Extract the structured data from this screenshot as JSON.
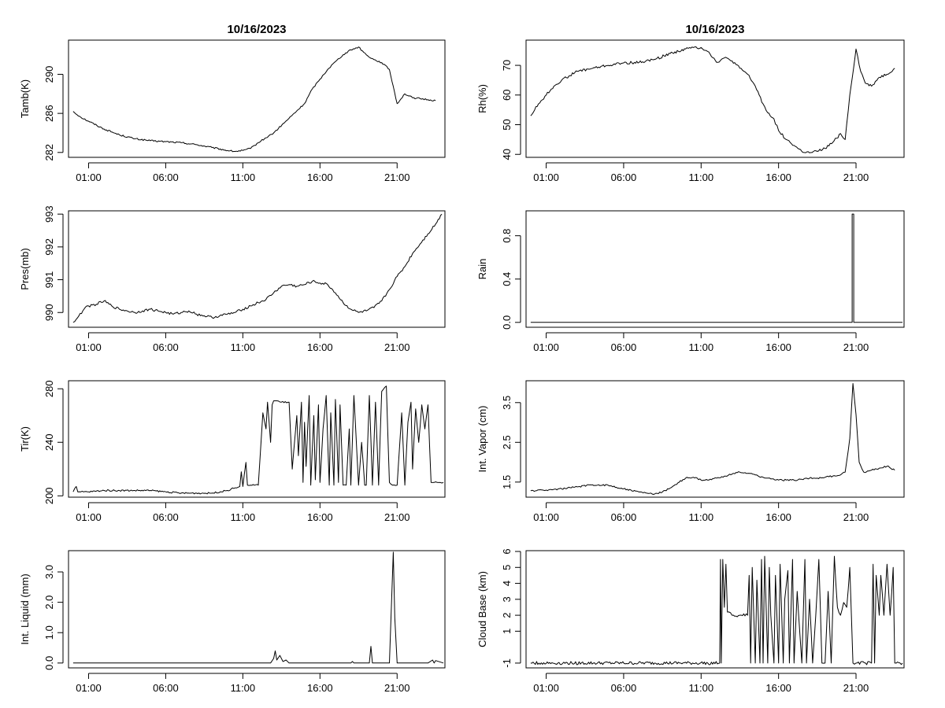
{
  "chart_data": [
    {
      "type": "line",
      "title": "10/16/2023",
      "ylabel": "Tamb(K)",
      "xlabel": "",
      "x_ticks": [
        "01:00",
        "06:00",
        "11:00",
        "16:00",
        "21:00"
      ],
      "x_tick_hours": [
        1,
        6,
        11,
        16,
        21
      ],
      "xlim": [
        -0.3,
        24.1
      ],
      "ylim": [
        281.5,
        293.5
      ],
      "y_ticks": [
        282,
        286,
        290
      ],
      "y_tick_labels": [
        "282",
        "286",
        "290"
      ],
      "noise": 0.08,
      "series": [
        {
          "name": "Tamb",
          "x": [
            0.0,
            0.5,
            1.0,
            2.0,
            3.0,
            4.0,
            5.0,
            6.0,
            7.0,
            8.0,
            9.0,
            10.0,
            10.5,
            11.0,
            11.5,
            12.0,
            12.5,
            13.0,
            14.0,
            15.0,
            15.5,
            16.0,
            16.5,
            17.0,
            17.5,
            18.0,
            18.5,
            19.0,
            19.5,
            20.0,
            20.5,
            21.0,
            21.5,
            22.0,
            22.5,
            23.0,
            23.5
          ],
          "values": [
            286.2,
            285.6,
            285.2,
            284.4,
            283.8,
            283.4,
            283.2,
            283.1,
            283.0,
            282.8,
            282.5,
            282.2,
            282.1,
            282.2,
            282.4,
            283.0,
            283.5,
            284.0,
            285.5,
            287.0,
            288.5,
            289.5,
            290.5,
            291.3,
            292.0,
            292.5,
            292.8,
            292.0,
            291.5,
            291.2,
            290.5,
            287.0,
            288.0,
            287.6,
            287.5,
            287.4,
            287.3
          ]
        }
      ]
    },
    {
      "type": "line",
      "title": "10/16/2023",
      "ylabel": "Rh(%)",
      "xlabel": "",
      "x_ticks": [
        "01:00",
        "06:00",
        "11:00",
        "16:00",
        "21:00"
      ],
      "x_tick_hours": [
        1,
        6,
        11,
        16,
        21
      ],
      "xlim": [
        -0.3,
        24.1
      ],
      "ylim": [
        39,
        78.5
      ],
      "y_ticks": [
        40,
        50,
        60,
        70
      ],
      "y_tick_labels": [
        "40",
        "50",
        "60",
        "70"
      ],
      "noise": 0.45,
      "series": [
        {
          "name": "Rh",
          "x": [
            0.0,
            0.5,
            1.0,
            1.5,
            2.0,
            3.0,
            4.0,
            5.0,
            6.0,
            7.0,
            8.0,
            9.0,
            10.0,
            10.5,
            11.0,
            11.5,
            12.0,
            12.5,
            13.0,
            13.5,
            14.0,
            14.5,
            15.0,
            15.3,
            15.7,
            16.0,
            16.5,
            17.0,
            17.5,
            18.0,
            18.5,
            19.0,
            19.5,
            20.0,
            20.3,
            20.6,
            21.0,
            21.3,
            21.6,
            22.0,
            22.5,
            23.0,
            23.5
          ],
          "values": [
            53.0,
            57.0,
            60.0,
            63.0,
            65.0,
            68.0,
            69.0,
            70.0,
            70.8,
            71.0,
            72.0,
            74.0,
            75.5,
            76.0,
            76.0,
            74.5,
            71.0,
            72.5,
            71.5,
            69.0,
            67.0,
            63.0,
            57.0,
            54.0,
            52.0,
            48.0,
            45.0,
            43.0,
            41.0,
            40.5,
            41.0,
            42.0,
            44.0,
            47.0,
            45.0,
            60.0,
            75.5,
            68.0,
            64.0,
            63.0,
            66.0,
            67.0,
            69.0
          ]
        }
      ]
    },
    {
      "type": "line",
      "title": "",
      "ylabel": "Pres(mb)",
      "xlabel": "",
      "x_ticks": [
        "01:00",
        "06:00",
        "11:00",
        "16:00",
        "21:00"
      ],
      "x_tick_hours": [
        1,
        6,
        11,
        16,
        21
      ],
      "xlim": [
        -0.3,
        24.1
      ],
      "ylim": [
        989.55,
        993.1
      ],
      "y_ticks": [
        990,
        991,
        992,
        993
      ],
      "y_tick_labels": [
        "990",
        "991",
        "992",
        "993"
      ],
      "noise": 0.04,
      "series": [
        {
          "name": "Pres",
          "x": [
            0.0,
            0.3,
            0.7,
            1.0,
            1.5,
            2.0,
            2.5,
            3.0,
            3.5,
            4.0,
            4.5,
            5.0,
            5.5,
            6.0,
            6.5,
            7.0,
            7.5,
            8.0,
            8.5,
            9.0,
            9.5,
            10.0,
            10.5,
            11.0,
            11.5,
            12.0,
            12.5,
            13.0,
            13.5,
            14.0,
            14.5,
            15.0,
            15.5,
            16.0,
            16.5,
            17.0,
            17.5,
            18.0,
            18.5,
            19.0,
            19.5,
            20.0,
            20.5,
            21.0,
            21.5,
            22.0,
            22.5,
            23.0,
            23.5,
            23.9
          ],
          "values": [
            989.7,
            989.85,
            990.1,
            990.2,
            990.25,
            990.35,
            990.2,
            990.1,
            990.05,
            990.0,
            990.05,
            990.1,
            990.05,
            990.0,
            989.95,
            990.0,
            990.05,
            989.95,
            989.9,
            989.85,
            989.9,
            989.95,
            990.0,
            990.1,
            990.2,
            990.3,
            990.4,
            990.6,
            990.8,
            990.85,
            990.8,
            990.85,
            990.95,
            990.9,
            990.85,
            990.6,
            990.3,
            990.1,
            990.0,
            990.05,
            990.15,
            990.35,
            990.7,
            991.1,
            991.4,
            991.8,
            992.1,
            992.4,
            992.7,
            993.0
          ]
        }
      ]
    },
    {
      "type": "line",
      "title": "",
      "ylabel": "Rain",
      "xlabel": "",
      "x_ticks": [
        "01:00",
        "06:00",
        "11:00",
        "16:00",
        "21:00"
      ],
      "x_tick_hours": [
        1,
        6,
        11,
        16,
        21
      ],
      "xlim": [
        -0.3,
        24.1
      ],
      "ylim": [
        -0.045,
        1.03
      ],
      "y_ticks": [
        0.0,
        0.4,
        0.8
      ],
      "y_tick_labels": [
        "0.0",
        "0.4",
        "0.8"
      ],
      "noise": 0,
      "series": [
        {
          "name": "Rain",
          "x": [
            0.0,
            20.75,
            20.75,
            20.85,
            20.85,
            24.0
          ],
          "values": [
            0.0,
            0.0,
            1.0,
            1.0,
            0.0,
            0.0
          ]
        }
      ]
    },
    {
      "type": "line",
      "title": "",
      "ylabel": "Tir(K)",
      "xlabel": "",
      "x_ticks": [
        "01:00",
        "06:00",
        "11:00",
        "16:00",
        "21:00"
      ],
      "x_tick_hours": [
        1,
        6,
        11,
        16,
        21
      ],
      "xlim": [
        -0.3,
        24.1
      ],
      "ylim": [
        199,
        286
      ],
      "y_ticks": [
        200,
        240,
        280
      ],
      "y_tick_labels": [
        "200",
        "240",
        "280"
      ],
      "noise": 0.6,
      "series": [
        {
          "name": "Tir",
          "x": [
            0.0,
            0.2,
            0.3,
            0.5,
            1.0,
            2.0,
            3.0,
            4.0,
            5.0,
            6.0,
            7.0,
            8.0,
            9.0,
            10.0,
            10.5,
            10.8,
            10.9,
            11.0,
            11.2,
            11.3,
            11.5,
            12.0,
            12.3,
            12.5,
            12.6,
            12.8,
            12.9,
            13.0,
            13.2,
            13.5,
            14.0,
            14.2,
            14.5,
            14.6,
            14.8,
            14.9,
            15.0,
            15.1,
            15.3,
            15.4,
            15.6,
            15.7,
            15.9,
            16.0,
            16.2,
            16.4,
            16.6,
            16.7,
            16.9,
            17.0,
            17.2,
            17.3,
            17.5,
            17.7,
            17.9,
            18.0,
            18.2,
            18.5,
            18.7,
            18.9,
            19.0,
            19.2,
            19.4,
            19.6,
            19.8,
            20.0,
            20.3,
            20.5,
            20.7,
            21.0,
            21.3,
            21.5,
            21.7,
            21.9,
            22.0,
            22.2,
            22.4,
            22.6,
            22.8,
            23.0,
            23.2,
            23.4,
            23.6,
            23.8,
            24.0
          ],
          "values": [
            203,
            207,
            203,
            203,
            203,
            204,
            204,
            204,
            204,
            203,
            202,
            202,
            202,
            204,
            206,
            207,
            218,
            207,
            225,
            208,
            208,
            208,
            262,
            250,
            270,
            240,
            268,
            271,
            271,
            270,
            270,
            220,
            260,
            230,
            270,
            210,
            255,
            222,
            275,
            208,
            260,
            212,
            268,
            210,
            250,
            275,
            208,
            262,
            208,
            272,
            210,
            268,
            208,
            208,
            250,
            208,
            275,
            208,
            240,
            208,
            208,
            275,
            208,
            270,
            208,
            278,
            282,
            210,
            208,
            208,
            262,
            208,
            255,
            270,
            220,
            265,
            240,
            268,
            250,
            268,
            210,
            210,
            210,
            210,
            210
          ]
        }
      ]
    },
    {
      "type": "line",
      "title": "",
      "ylabel": "Int. Vapor (cm)",
      "xlabel": "",
      "x_ticks": [
        "01:00",
        "06:00",
        "11:00",
        "16:00",
        "21:00"
      ],
      "x_tick_hours": [
        1,
        6,
        11,
        16,
        21
      ],
      "xlim": [
        -0.3,
        24.1
      ],
      "ylim": [
        1.12,
        4.05
      ],
      "y_ticks": [
        1.5,
        2.5,
        3.5
      ],
      "y_tick_labels": [
        "1.5",
        "2.5",
        "3.5"
      ],
      "noise": 0.02,
      "series": [
        {
          "name": "Int. Vapor",
          "x": [
            0.0,
            1.0,
            2.0,
            3.0,
            4.0,
            5.0,
            6.0,
            7.0,
            7.5,
            8.0,
            8.5,
            9.0,
            9.5,
            10.0,
            10.5,
            11.0,
            11.5,
            12.0,
            12.5,
            13.0,
            13.5,
            14.0,
            14.5,
            15.0,
            15.5,
            16.0,
            16.5,
            17.0,
            17.5,
            18.0,
            18.5,
            19.0,
            19.5,
            20.0,
            20.3,
            20.6,
            20.8,
            21.0,
            21.2,
            21.5,
            22.0,
            22.5,
            23.0,
            23.5
          ],
          "values": [
            1.28,
            1.3,
            1.33,
            1.38,
            1.43,
            1.42,
            1.33,
            1.25,
            1.22,
            1.2,
            1.25,
            1.35,
            1.48,
            1.6,
            1.62,
            1.55,
            1.55,
            1.6,
            1.65,
            1.7,
            1.75,
            1.72,
            1.68,
            1.62,
            1.58,
            1.55,
            1.55,
            1.55,
            1.57,
            1.6,
            1.6,
            1.62,
            1.65,
            1.68,
            1.75,
            2.6,
            3.98,
            3.2,
            2.0,
            1.75,
            1.8,
            1.85,
            1.9,
            1.8
          ]
        }
      ]
    },
    {
      "type": "line",
      "title": "",
      "ylabel": "Int. Liquid (mm)",
      "xlabel": "",
      "x_ticks": [
        "01:00",
        "06:00",
        "11:00",
        "16:00",
        "21:00"
      ],
      "x_tick_hours": [
        1,
        6,
        11,
        16,
        21
      ],
      "xlim": [
        -0.3,
        24.1
      ],
      "ylim": [
        -0.16,
        3.7
      ],
      "y_ticks": [
        0.0,
        1.0,
        2.0,
        3.0
      ],
      "y_tick_labels": [
        "0.0",
        "1.0",
        "2.0",
        "3.0"
      ],
      "noise": 0,
      "series": [
        {
          "name": "Int. Liquid",
          "x": [
            0.0,
            12.8,
            13.0,
            13.1,
            13.2,
            13.4,
            13.6,
            13.8,
            14.0,
            18.0,
            18.1,
            18.2,
            19.2,
            19.3,
            19.4,
            20.5,
            20.75,
            20.85,
            21.0,
            23.0,
            23.3,
            23.4,
            23.5,
            24.0
          ],
          "values": [
            0.0,
            0.0,
            0.15,
            0.4,
            0.1,
            0.25,
            0.05,
            0.1,
            0.0,
            0.0,
            0.05,
            0.0,
            0.0,
            0.55,
            0.0,
            0.0,
            3.65,
            1.5,
            0.0,
            0.0,
            0.1,
            0.0,
            0.08,
            0.0
          ]
        }
      ]
    },
    {
      "type": "line",
      "title": "",
      "ylabel": "Cloud Base (km)",
      "xlabel": "",
      "x_ticks": [
        "01:00",
        "06:00",
        "11:00",
        "16:00",
        "21:00"
      ],
      "x_tick_hours": [
        1,
        6,
        11,
        16,
        21
      ],
      "xlim": [
        -0.3,
        24.1
      ],
      "ylim": [
        -1.3,
        6.05
      ],
      "y_ticks": [
        -1,
        1,
        2,
        3,
        4,
        5,
        6
      ],
      "y_tick_labels": [
        "-1",
        "1",
        "2",
        "3",
        "4",
        "5",
        "6"
      ],
      "noise": 0.1,
      "series": [
        {
          "name": "Cloud Base",
          "x": [
            0.0,
            12.2,
            12.25,
            12.3,
            12.4,
            12.5,
            12.6,
            12.7,
            13.0,
            13.5,
            14.0,
            14.1,
            14.2,
            14.3,
            14.5,
            14.6,
            14.8,
            14.9,
            15.0,
            15.1,
            15.2,
            15.3,
            15.4,
            15.5,
            15.7,
            15.8,
            16.0,
            16.1,
            16.3,
            16.4,
            16.6,
            16.7,
            16.9,
            17.0,
            17.2,
            17.5,
            17.7,
            17.8,
            18.0,
            18.2,
            18.4,
            18.6,
            18.8,
            19.0,
            19.2,
            19.4,
            19.6,
            19.8,
            20.0,
            20.2,
            20.4,
            20.6,
            20.8,
            21.0,
            22.0,
            22.1,
            22.2,
            22.3,
            22.5,
            22.6,
            22.8,
            23.0,
            23.2,
            23.4,
            23.5,
            23.6,
            24.0
          ],
          "values": [
            -1,
            -1,
            5.5,
            -1,
            5.5,
            2.5,
            5.2,
            2.2,
            2.0,
            2.0,
            2.0,
            4.5,
            -1,
            5.0,
            -1,
            4.2,
            -1,
            5.5,
            -1,
            5.7,
            2.5,
            -1,
            5.0,
            2.0,
            -1,
            4.5,
            -1,
            5.2,
            -1,
            3.0,
            4.8,
            -1,
            5.5,
            -1,
            3.5,
            -1,
            5.5,
            -1,
            3.0,
            -1,
            2.0,
            5.5,
            -1,
            -1,
            3.5,
            -1,
            5.7,
            2.5,
            2.0,
            2.8,
            2.5,
            5.0,
            -1,
            -1,
            -1,
            5.2,
            -1,
            4.5,
            2.0,
            4.5,
            2.0,
            5.2,
            2.0,
            5.0,
            -1,
            -1,
            -1
          ]
        }
      ]
    }
  ]
}
